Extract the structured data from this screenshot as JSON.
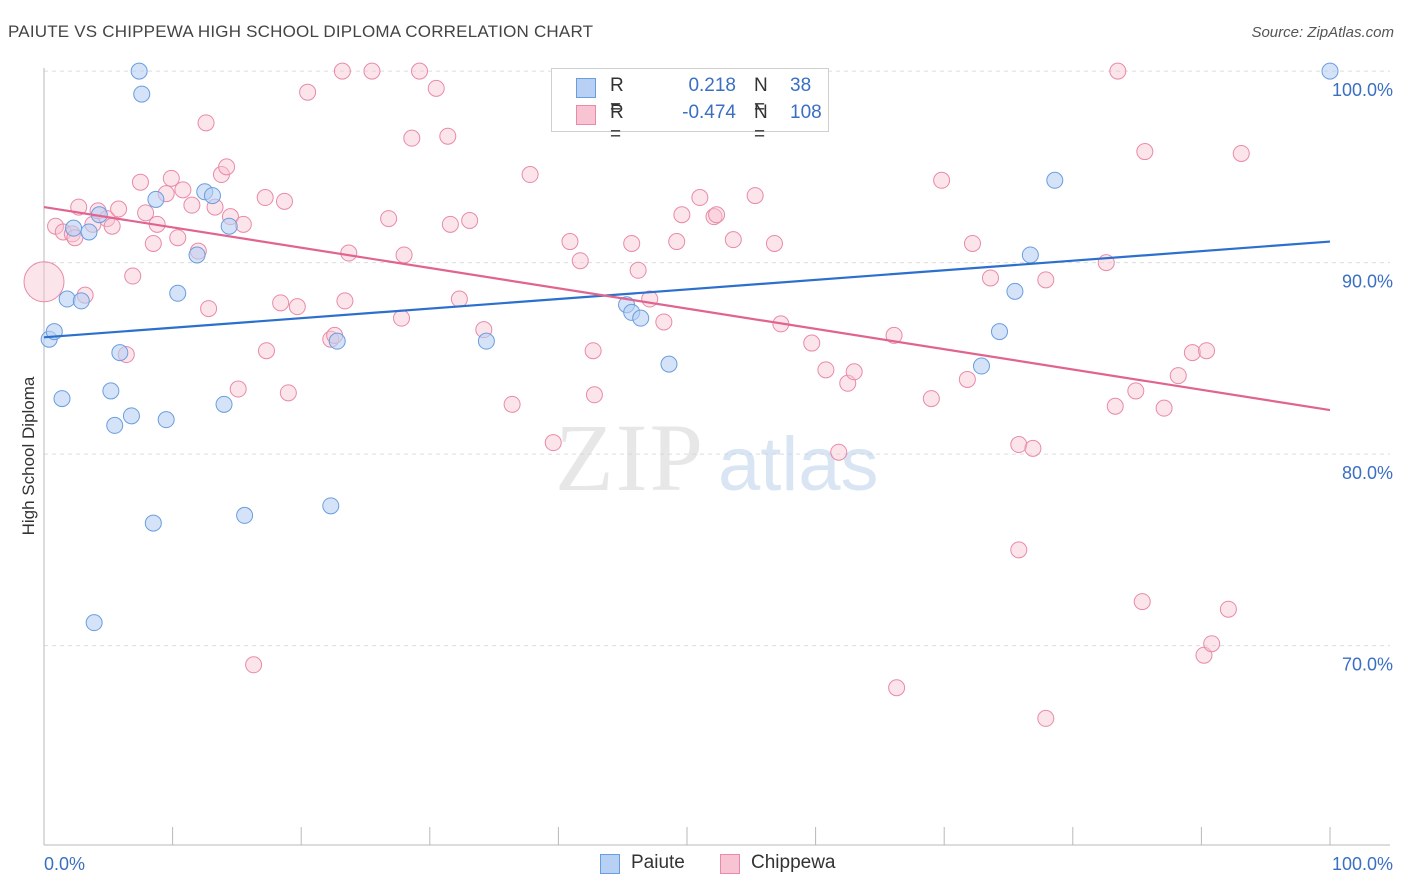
{
  "title": "PAIUTE VS CHIPPEWA HIGH SCHOOL DIPLOMA CORRELATION CHART",
  "source": "Source: ZipAtlas.com",
  "watermark": {
    "zip": "ZIP",
    "atlas": "atlas"
  },
  "legend": {
    "rows": [
      {
        "r_label": "R =",
        "r_value": "0.218",
        "n_label": "N =",
        "n_value": "38"
      },
      {
        "r_label": "R =",
        "r_value": "-0.474",
        "n_label": "N =",
        "n_value": "108"
      }
    ]
  },
  "bottom_legend": {
    "paiute": "Paiute",
    "chippewa": "Chippewa"
  },
  "colors": {
    "paiute_fill": "#b7d0f3",
    "paiute_stroke": "#6a9ddf",
    "paiute_line": "#2c6fcc",
    "chippewa_fill": "#f8c3d2",
    "chippewa_stroke": "#e98aa8",
    "chippewa_line": "#e0648f",
    "tick_label": "#3a6fc2",
    "grid": "#dcdcdc"
  },
  "chart_data": {
    "type": "scatter",
    "title": "PAIUTE VS CHIPPEWA HIGH SCHOOL DIPLOMA CORRELATION CHART",
    "xlabel": "",
    "ylabel": "High School Diploma",
    "xlim": [
      0,
      100
    ],
    "ylim": [
      59.5,
      101.5
    ],
    "x_tick_labels": [
      "0.0%",
      "100.0%"
    ],
    "y_ticks": [
      100,
      90,
      80,
      70
    ],
    "y_tick_labels": [
      "100.0%",
      "90.0%",
      "80.0%",
      "70.0%"
    ],
    "grid": true,
    "series": [
      {
        "name": "Paiute",
        "r": 0.218,
        "n": 38,
        "trend": {
          "x": [
            0,
            100
          ],
          "y": [
            86.1,
            91.1
          ]
        },
        "points": [
          [
            0.4,
            86.0
          ],
          [
            0.8,
            86.4
          ],
          [
            1.4,
            82.9
          ],
          [
            1.8,
            88.1
          ],
          [
            2.3,
            91.8
          ],
          [
            2.9,
            88.0
          ],
          [
            3.5,
            91.6
          ],
          [
            3.9,
            71.2
          ],
          [
            4.3,
            92.5
          ],
          [
            5.2,
            83.3
          ],
          [
            5.5,
            81.5
          ],
          [
            5.9,
            85.3
          ],
          [
            6.8,
            82.0
          ],
          [
            7.4,
            100.0
          ],
          [
            7.6,
            98.8
          ],
          [
            8.5,
            76.4
          ],
          [
            8.7,
            93.3
          ],
          [
            9.5,
            81.8
          ],
          [
            10.4,
            88.4
          ],
          [
            11.9,
            90.4
          ],
          [
            12.5,
            93.7
          ],
          [
            13.1,
            93.5
          ],
          [
            14.0,
            82.6
          ],
          [
            14.4,
            91.9
          ],
          [
            15.6,
            76.8
          ],
          [
            22.3,
            77.3
          ],
          [
            22.8,
            85.9
          ],
          [
            34.4,
            85.9
          ],
          [
            45.3,
            87.8
          ],
          [
            45.7,
            87.4
          ],
          [
            46.4,
            87.1
          ],
          [
            48.6,
            84.7
          ],
          [
            72.9,
            84.6
          ],
          [
            74.3,
            86.4
          ],
          [
            75.5,
            88.5
          ],
          [
            76.7,
            90.4
          ],
          [
            78.6,
            94.3
          ],
          [
            100.0,
            100.0
          ]
        ]
      },
      {
        "name": "Chippewa",
        "r": -0.474,
        "n": 108,
        "trend": {
          "x": [
            0,
            100
          ],
          "y": [
            92.9,
            82.3
          ]
        },
        "points": [
          [
            0.0,
            89.0
          ],
          [
            0.9,
            91.9
          ],
          [
            1.5,
            91.6
          ],
          [
            2.2,
            91.5
          ],
          [
            2.4,
            91.3
          ],
          [
            2.7,
            92.9
          ],
          [
            3.2,
            88.3
          ],
          [
            3.8,
            92.0
          ],
          [
            4.2,
            92.7
          ],
          [
            4.9,
            92.3
          ],
          [
            5.3,
            91.9
          ],
          [
            5.8,
            92.8
          ],
          [
            6.4,
            85.2
          ],
          [
            6.9,
            89.3
          ],
          [
            7.5,
            94.2
          ],
          [
            7.9,
            92.6
          ],
          [
            8.5,
            91.0
          ],
          [
            8.8,
            92.0
          ],
          [
            9.5,
            93.6
          ],
          [
            9.9,
            94.4
          ],
          [
            10.4,
            91.3
          ],
          [
            10.8,
            93.8
          ],
          [
            11.5,
            93.0
          ],
          [
            12.0,
            90.6
          ],
          [
            12.6,
            97.3
          ],
          [
            12.8,
            87.6
          ],
          [
            13.3,
            92.9
          ],
          [
            13.8,
            94.6
          ],
          [
            14.2,
            95.0
          ],
          [
            14.5,
            92.4
          ],
          [
            15.1,
            83.4
          ],
          [
            15.5,
            92.0
          ],
          [
            16.3,
            69.0
          ],
          [
            17.2,
            93.4
          ],
          [
            17.3,
            85.4
          ],
          [
            18.4,
            87.9
          ],
          [
            18.7,
            93.2
          ],
          [
            19.0,
            83.2
          ],
          [
            19.7,
            87.7
          ],
          [
            20.5,
            98.9
          ],
          [
            22.3,
            86.0
          ],
          [
            22.6,
            86.2
          ],
          [
            23.2,
            100.0
          ],
          [
            23.4,
            88.0
          ],
          [
            23.7,
            90.5
          ],
          [
            25.5,
            100.0
          ],
          [
            26.8,
            92.3
          ],
          [
            27.8,
            87.1
          ],
          [
            28.0,
            90.4
          ],
          [
            28.6,
            96.5
          ],
          [
            29.2,
            100.0
          ],
          [
            30.5,
            99.1
          ],
          [
            31.4,
            96.6
          ],
          [
            31.6,
            92.0
          ],
          [
            32.3,
            88.1
          ],
          [
            33.1,
            92.2
          ],
          [
            34.2,
            86.5
          ],
          [
            36.4,
            82.6
          ],
          [
            37.8,
            94.6
          ],
          [
            39.6,
            80.6
          ],
          [
            40.9,
            91.1
          ],
          [
            41.7,
            90.1
          ],
          [
            42.7,
            85.4
          ],
          [
            42.8,
            83.1
          ],
          [
            45.7,
            91.0
          ],
          [
            46.2,
            89.6
          ],
          [
            47.1,
            88.1
          ],
          [
            48.2,
            86.9
          ],
          [
            49.2,
            91.1
          ],
          [
            49.6,
            92.5
          ],
          [
            51.0,
            93.4
          ],
          [
            52.1,
            92.4
          ],
          [
            52.3,
            92.5
          ],
          [
            53.6,
            91.2
          ],
          [
            55.3,
            93.5
          ],
          [
            56.8,
            91.0
          ],
          [
            57.3,
            86.8
          ],
          [
            59.7,
            85.8
          ],
          [
            60.8,
            84.4
          ],
          [
            61.8,
            80.1
          ],
          [
            62.5,
            83.7
          ],
          [
            63.0,
            84.3
          ],
          [
            66.1,
            86.2
          ],
          [
            66.3,
            67.8
          ],
          [
            69.0,
            82.9
          ],
          [
            69.8,
            94.3
          ],
          [
            71.8,
            83.9
          ],
          [
            72.2,
            91.0
          ],
          [
            73.6,
            89.2
          ],
          [
            75.8,
            80.5
          ],
          [
            75.8,
            75.0
          ],
          [
            76.9,
            80.3
          ],
          [
            77.9,
            89.1
          ],
          [
            77.9,
            66.2
          ],
          [
            82.6,
            90.0
          ],
          [
            83.3,
            82.5
          ],
          [
            83.5,
            100.0
          ],
          [
            84.9,
            83.3
          ],
          [
            85.4,
            72.3
          ],
          [
            85.6,
            95.8
          ],
          [
            87.1,
            82.4
          ],
          [
            88.2,
            84.1
          ],
          [
            89.3,
            85.3
          ],
          [
            90.4,
            85.4
          ],
          [
            90.2,
            69.5
          ],
          [
            90.8,
            70.1
          ],
          [
            92.1,
            71.9
          ],
          [
            93.1,
            95.7
          ]
        ]
      }
    ]
  }
}
